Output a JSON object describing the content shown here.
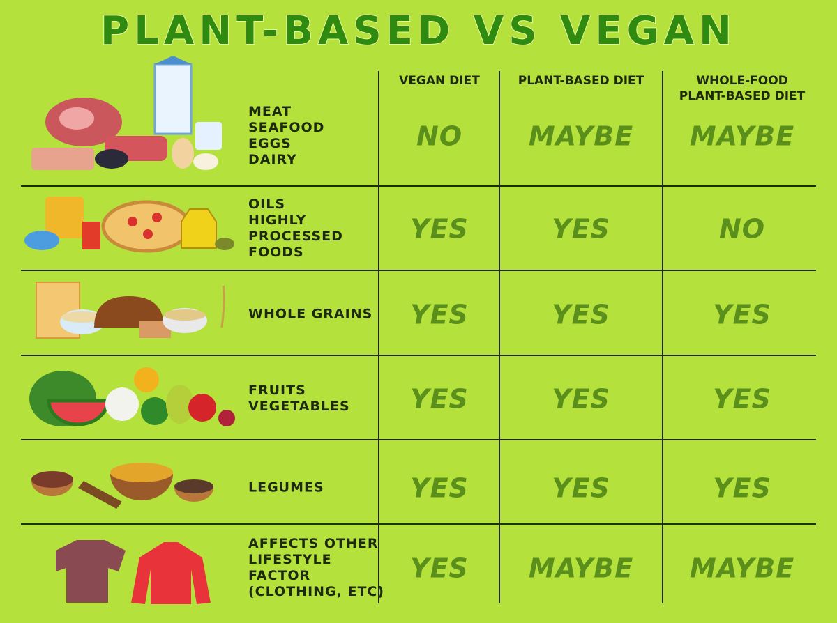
{
  "title": "PLANT-BASED VS VEGAN",
  "table": {
    "header": [
      [
        "VEGAN DIET"
      ],
      [
        "PLANT-BASED DIET"
      ],
      [
        "WHOLE-FOOD",
        "PLANT-BASED DIET"
      ]
    ],
    "rows": [
      {
        "label": [
          "MEAT",
          "SEAFOOD",
          "EGGS",
          "DAIRY"
        ],
        "cells": [
          "NO",
          "MAYBE",
          "MAYBE"
        ]
      },
      {
        "label": [
          "OILS",
          "HIGHLY",
          "PROCESSED",
          "FOODS"
        ],
        "cells": [
          "YES",
          "YES",
          "NO"
        ]
      },
      {
        "label": [
          "WHOLE GRAINS"
        ],
        "cells": [
          "YES",
          "YES",
          "YES"
        ]
      },
      {
        "label": [
          "FRUITS",
          "VEGETABLES"
        ],
        "cells": [
          "YES",
          "YES",
          "YES"
        ]
      },
      {
        "label": [
          "LEGUMES"
        ],
        "cells": [
          "YES",
          "YES",
          "YES"
        ]
      },
      {
        "label": [
          "AFFECTS OTHER",
          "LIFESTYLE",
          "FACTOR",
          "(CLOTHING, ETC)"
        ],
        "cells": [
          "YES",
          "MAYBE",
          "MAYBE"
        ]
      }
    ]
  }
}
